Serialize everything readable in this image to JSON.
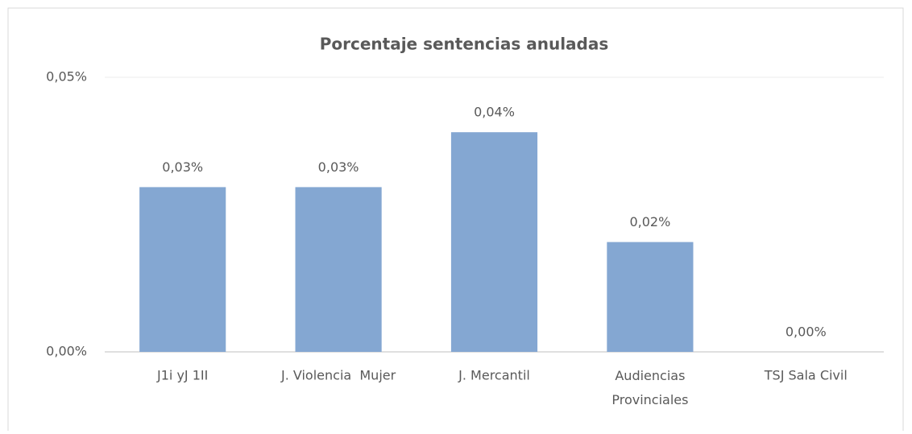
{
  "chart_data": {
    "type": "bar",
    "title": "Porcentaje sentencias anuladas",
    "categories": [
      "J1i yJ 1II",
      "J. Violencia  Mujer",
      "J. Mercantil",
      "Audiencias Provinciales",
      "TSJ Sala Civil"
    ],
    "values": [
      0.03,
      0.03,
      0.04,
      0.02,
      0.0
    ],
    "value_labels": [
      "0,03%",
      "0,03%",
      "0,04%",
      "0,02%",
      "0,00%"
    ],
    "color": "#84a7d2",
    "ylim": [
      0,
      0.05
    ],
    "yticks": [
      {
        "value": 0,
        "label": "0,00%"
      },
      {
        "value": 0.05,
        "label": "0,05%"
      }
    ],
    "grid": true
  }
}
